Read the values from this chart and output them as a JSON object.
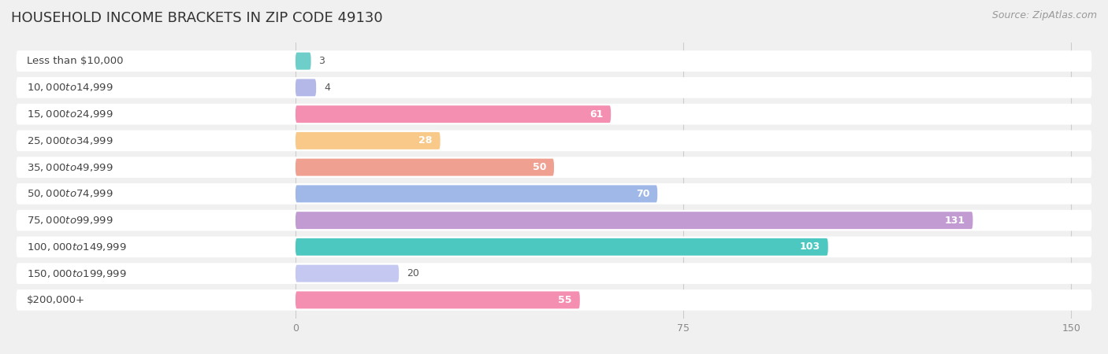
{
  "title": "HOUSEHOLD INCOME BRACKETS IN ZIP CODE 49130",
  "source": "Source: ZipAtlas.com",
  "categories": [
    "Less than $10,000",
    "$10,000 to $14,999",
    "$15,000 to $24,999",
    "$25,000 to $34,999",
    "$35,000 to $49,999",
    "$50,000 to $74,999",
    "$75,000 to $99,999",
    "$100,000 to $149,999",
    "$150,000 to $199,999",
    "$200,000+"
  ],
  "values": [
    3,
    4,
    61,
    28,
    50,
    70,
    131,
    103,
    20,
    55
  ],
  "bar_colors": [
    "#6ecfca",
    "#b3b8e8",
    "#f48fb1",
    "#f9c98a",
    "#f0a090",
    "#9fb8e8",
    "#c39bd3",
    "#4dc8c0",
    "#c5c8f0",
    "#f48fb1"
  ],
  "xlim": [
    0,
    150
  ],
  "xticks": [
    0,
    75,
    150
  ],
  "background_color": "#f0f0f0",
  "bar_background_color": "#ffffff",
  "title_fontsize": 13,
  "source_fontsize": 9,
  "bar_label_fontsize": 9,
  "category_fontsize": 9.5,
  "bar_height": 0.65,
  "value_threshold": 25
}
